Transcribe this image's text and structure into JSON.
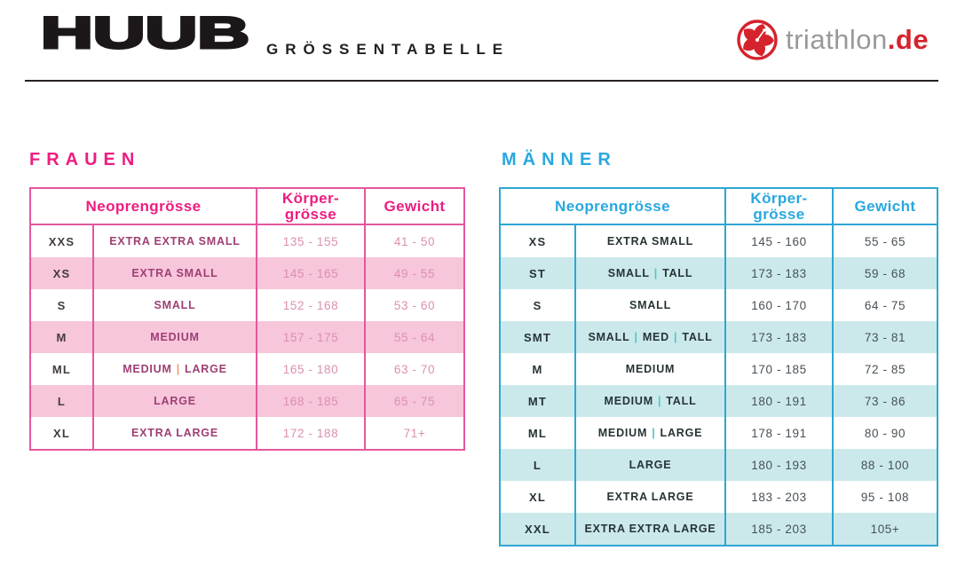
{
  "header": {
    "brand": "HUUB",
    "title": "GRÖSSENTABELLE",
    "partner_name": "triathlon",
    "partner_tld": ".de"
  },
  "colors": {
    "ink": "#231f20",
    "partner_gray": "#97999B",
    "partner_red": "#D5232E"
  },
  "tables": [
    {
      "section_title": "FRAUEN",
      "theme": {
        "header_text": "#EE1D80",
        "border": "#E4579E",
        "row_alt_bg": "#F7C6DB",
        "code_text": "#433A40",
        "name_text": "#9E3F74",
        "number_text": "#DB8FB2",
        "pipe": "#F09B6F"
      },
      "columns": {
        "neoprene": "Neoprengrösse",
        "body_line1": "Körper-",
        "body_line2": "grösse",
        "weight": "Gewicht"
      },
      "separator": "|",
      "rows": [
        {
          "code": "XXS",
          "name_parts": [
            "EXTRA EXTRA SMALL"
          ],
          "height": "135 - 155",
          "weight": "41 - 50"
        },
        {
          "code": "XS",
          "name_parts": [
            "EXTRA SMALL"
          ],
          "height": "145 - 165",
          "weight": "49 - 55"
        },
        {
          "code": "S",
          "name_parts": [
            "SMALL"
          ],
          "height": "152 - 168",
          "weight": "53 - 60"
        },
        {
          "code": "M",
          "name_parts": [
            "MEDIUM"
          ],
          "height": "157 - 175",
          "weight": "55 - 64"
        },
        {
          "code": "ML",
          "name_parts": [
            "MEDIUM",
            "LARGE"
          ],
          "height": "165 - 180",
          "weight": "63 - 70"
        },
        {
          "code": "L",
          "name_parts": [
            "LARGE"
          ],
          "height": "168 - 185",
          "weight": "65 - 75"
        },
        {
          "code": "XL",
          "name_parts": [
            "EXTRA LARGE"
          ],
          "height": "172 - 188",
          "weight": "71+"
        }
      ]
    },
    {
      "section_title": "MÄNNER",
      "theme": {
        "header_text": "#29A7DF",
        "border": "#2FA6D2",
        "row_alt_bg": "#CBE9EB",
        "code_text": "#273335",
        "name_text": "#273335",
        "number_text": "#475156",
        "pipe": "#53C6C3"
      },
      "columns": {
        "neoprene": "Neoprengrösse",
        "body_line1": "Körper-",
        "body_line2": "grösse",
        "weight": "Gewicht"
      },
      "separator": "|",
      "rows": [
        {
          "code": "XS",
          "name_parts": [
            "EXTRA SMALL"
          ],
          "height": "145 - 160",
          "weight": "55 - 65"
        },
        {
          "code": "ST",
          "name_parts": [
            "SMALL",
            "TALL"
          ],
          "height": "173 - 183",
          "weight": "59 - 68"
        },
        {
          "code": "S",
          "name_parts": [
            "SMALL"
          ],
          "height": "160 - 170",
          "weight": "64 - 75"
        },
        {
          "code": "SMT",
          "name_parts": [
            "SMALL",
            "MED",
            "TALL"
          ],
          "height": "173 - 183",
          "weight": "73 - 81"
        },
        {
          "code": "M",
          "name_parts": [
            "MEDIUM"
          ],
          "height": "170 - 185",
          "weight": "72 - 85"
        },
        {
          "code": "MT",
          "name_parts": [
            "MEDIUM",
            "TALL"
          ],
          "height": "180 - 191",
          "weight": "73 - 86"
        },
        {
          "code": "ML",
          "name_parts": [
            "MEDIUM",
            "LARGE"
          ],
          "height": "178 - 191",
          "weight": "80 - 90"
        },
        {
          "code": "L",
          "name_parts": [
            "LARGE"
          ],
          "height": "180 - 193",
          "weight": "88 - 100"
        },
        {
          "code": "XL",
          "name_parts": [
            "EXTRA LARGE"
          ],
          "height": "183 - 203",
          "weight": "95 - 108"
        },
        {
          "code": "XXL",
          "name_parts": [
            "EXTRA EXTRA LARGE"
          ],
          "height": "185 - 203",
          "weight": "105+"
        }
      ]
    }
  ]
}
